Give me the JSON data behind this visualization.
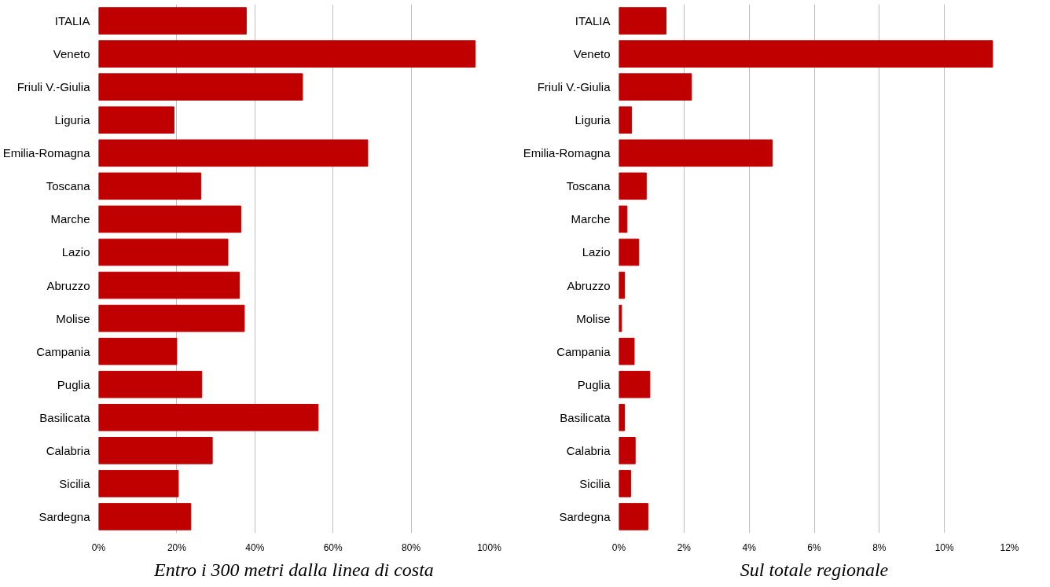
{
  "chart_data": [
    {
      "type": "bar",
      "orientation": "horizontal",
      "xlabel": "Entro i 300 metri dalla linea di costa",
      "categories": [
        "ITALIA",
        "Veneto",
        "Friuli V.-Giulia",
        "Liguria",
        "Emilia-Romagna",
        "Toscana",
        "Marche",
        "Lazio",
        "Abruzzo",
        "Molise",
        "Campania",
        "Puglia",
        "Basilicata",
        "Calabria",
        "Sicilia",
        "Sardegna"
      ],
      "values": [
        37.8,
        96.4,
        52.2,
        19.3,
        68.9,
        26.2,
        36.4,
        33.1,
        36.0,
        37.3,
        20.0,
        26.4,
        56.2,
        29.1,
        20.4,
        23.6
      ],
      "color": "#c00000",
      "xlim": [
        0,
        100
      ],
      "xticks": [
        {
          "value": 0,
          "label": "0%"
        },
        {
          "value": 20,
          "label": "20%"
        },
        {
          "value": 40,
          "label": "40%"
        },
        {
          "value": 60,
          "label": "60%"
        },
        {
          "value": 80,
          "label": "80%"
        },
        {
          "value": 100,
          "label": "100%"
        }
      ],
      "grid": "x"
    },
    {
      "type": "bar",
      "orientation": "horizontal",
      "xlabel": "Sul totale regionale",
      "categories": [
        "ITALIA",
        "Veneto",
        "Friuli V.-Giulia",
        "Liguria",
        "Emilia-Romagna",
        "Toscana",
        "Marche",
        "Lazio",
        "Abruzzo",
        "Molise",
        "Campania",
        "Puglia",
        "Basilicata",
        "Calabria",
        "Sicilia",
        "Sardegna"
      ],
      "values": [
        1.45,
        11.48,
        2.23,
        0.39,
        4.71,
        0.84,
        0.25,
        0.61,
        0.17,
        0.08,
        0.47,
        0.95,
        0.17,
        0.5,
        0.36,
        0.89
      ],
      "color": "#c00000",
      "xlim": [
        0,
        12
      ],
      "xticks": [
        {
          "value": 0,
          "label": "0%"
        },
        {
          "value": 2,
          "label": "2%"
        },
        {
          "value": 4,
          "label": "4%"
        },
        {
          "value": 6,
          "label": "6%"
        },
        {
          "value": 8,
          "label": "8%"
        },
        {
          "value": 10,
          "label": "10%"
        },
        {
          "value": 12,
          "label": "12%"
        }
      ],
      "grid": "x"
    }
  ]
}
